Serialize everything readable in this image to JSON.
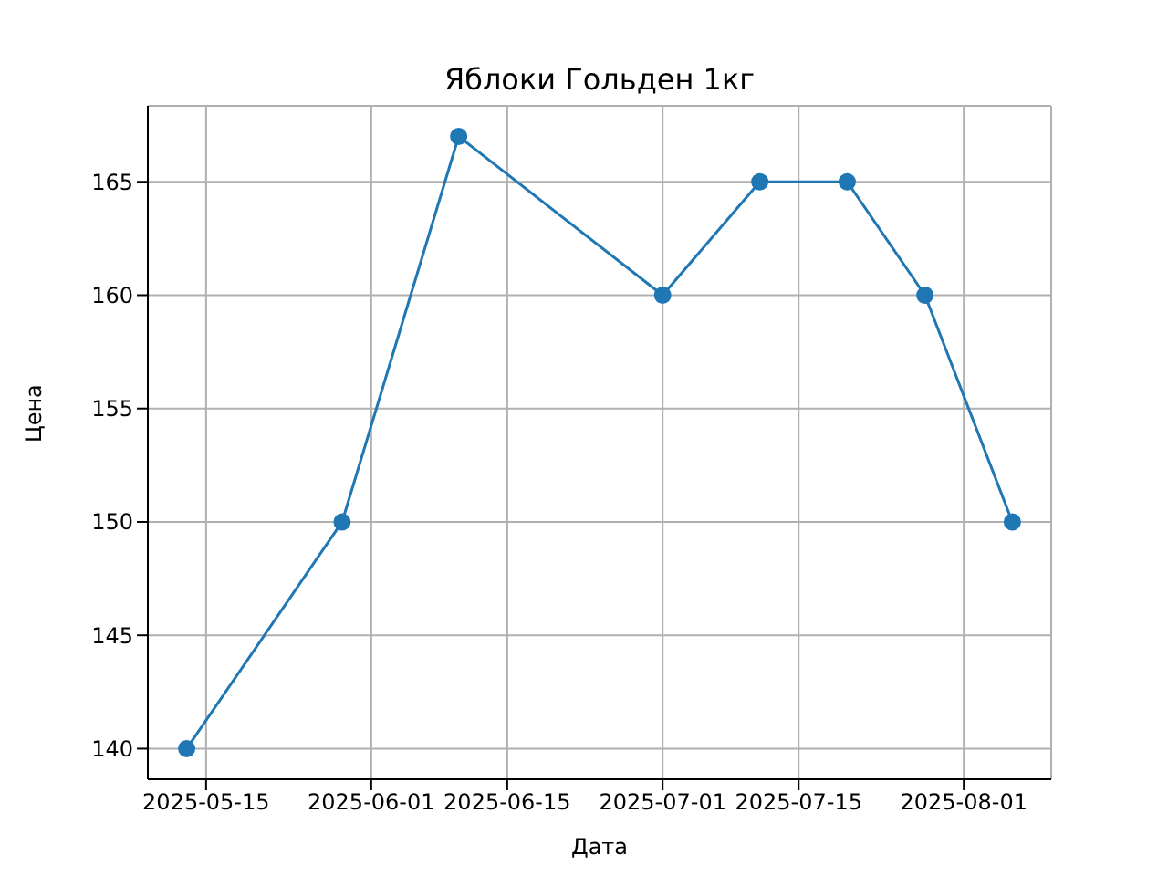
{
  "chart_data": {
    "type": "line",
    "title": "Яблоки Гольден 1кг",
    "xlabel": "Дата",
    "ylabel": "Цена",
    "x": [
      "2025-05-13",
      "2025-05-29",
      "2025-06-10",
      "2025-07-01",
      "2025-07-11",
      "2025-07-20",
      "2025-07-28",
      "2025-08-06"
    ],
    "series": [
      {
        "color": "#1f77b4",
        "values": [
          140,
          150,
          167,
          160,
          165,
          165,
          160,
          150
        ]
      }
    ],
    "xlim": [
      "2025-05-09",
      "2025-08-10"
    ],
    "xticks": [
      "2025-05-15",
      "2025-06-01",
      "2025-06-15",
      "2025-07-01",
      "2025-07-15",
      "2025-08-01"
    ],
    "ylim": [
      138.65,
      168.35
    ],
    "yticks": [
      140,
      145,
      150,
      155,
      160,
      165
    ],
    "grid": true,
    "marker": "circle",
    "line_style": "solid"
  }
}
